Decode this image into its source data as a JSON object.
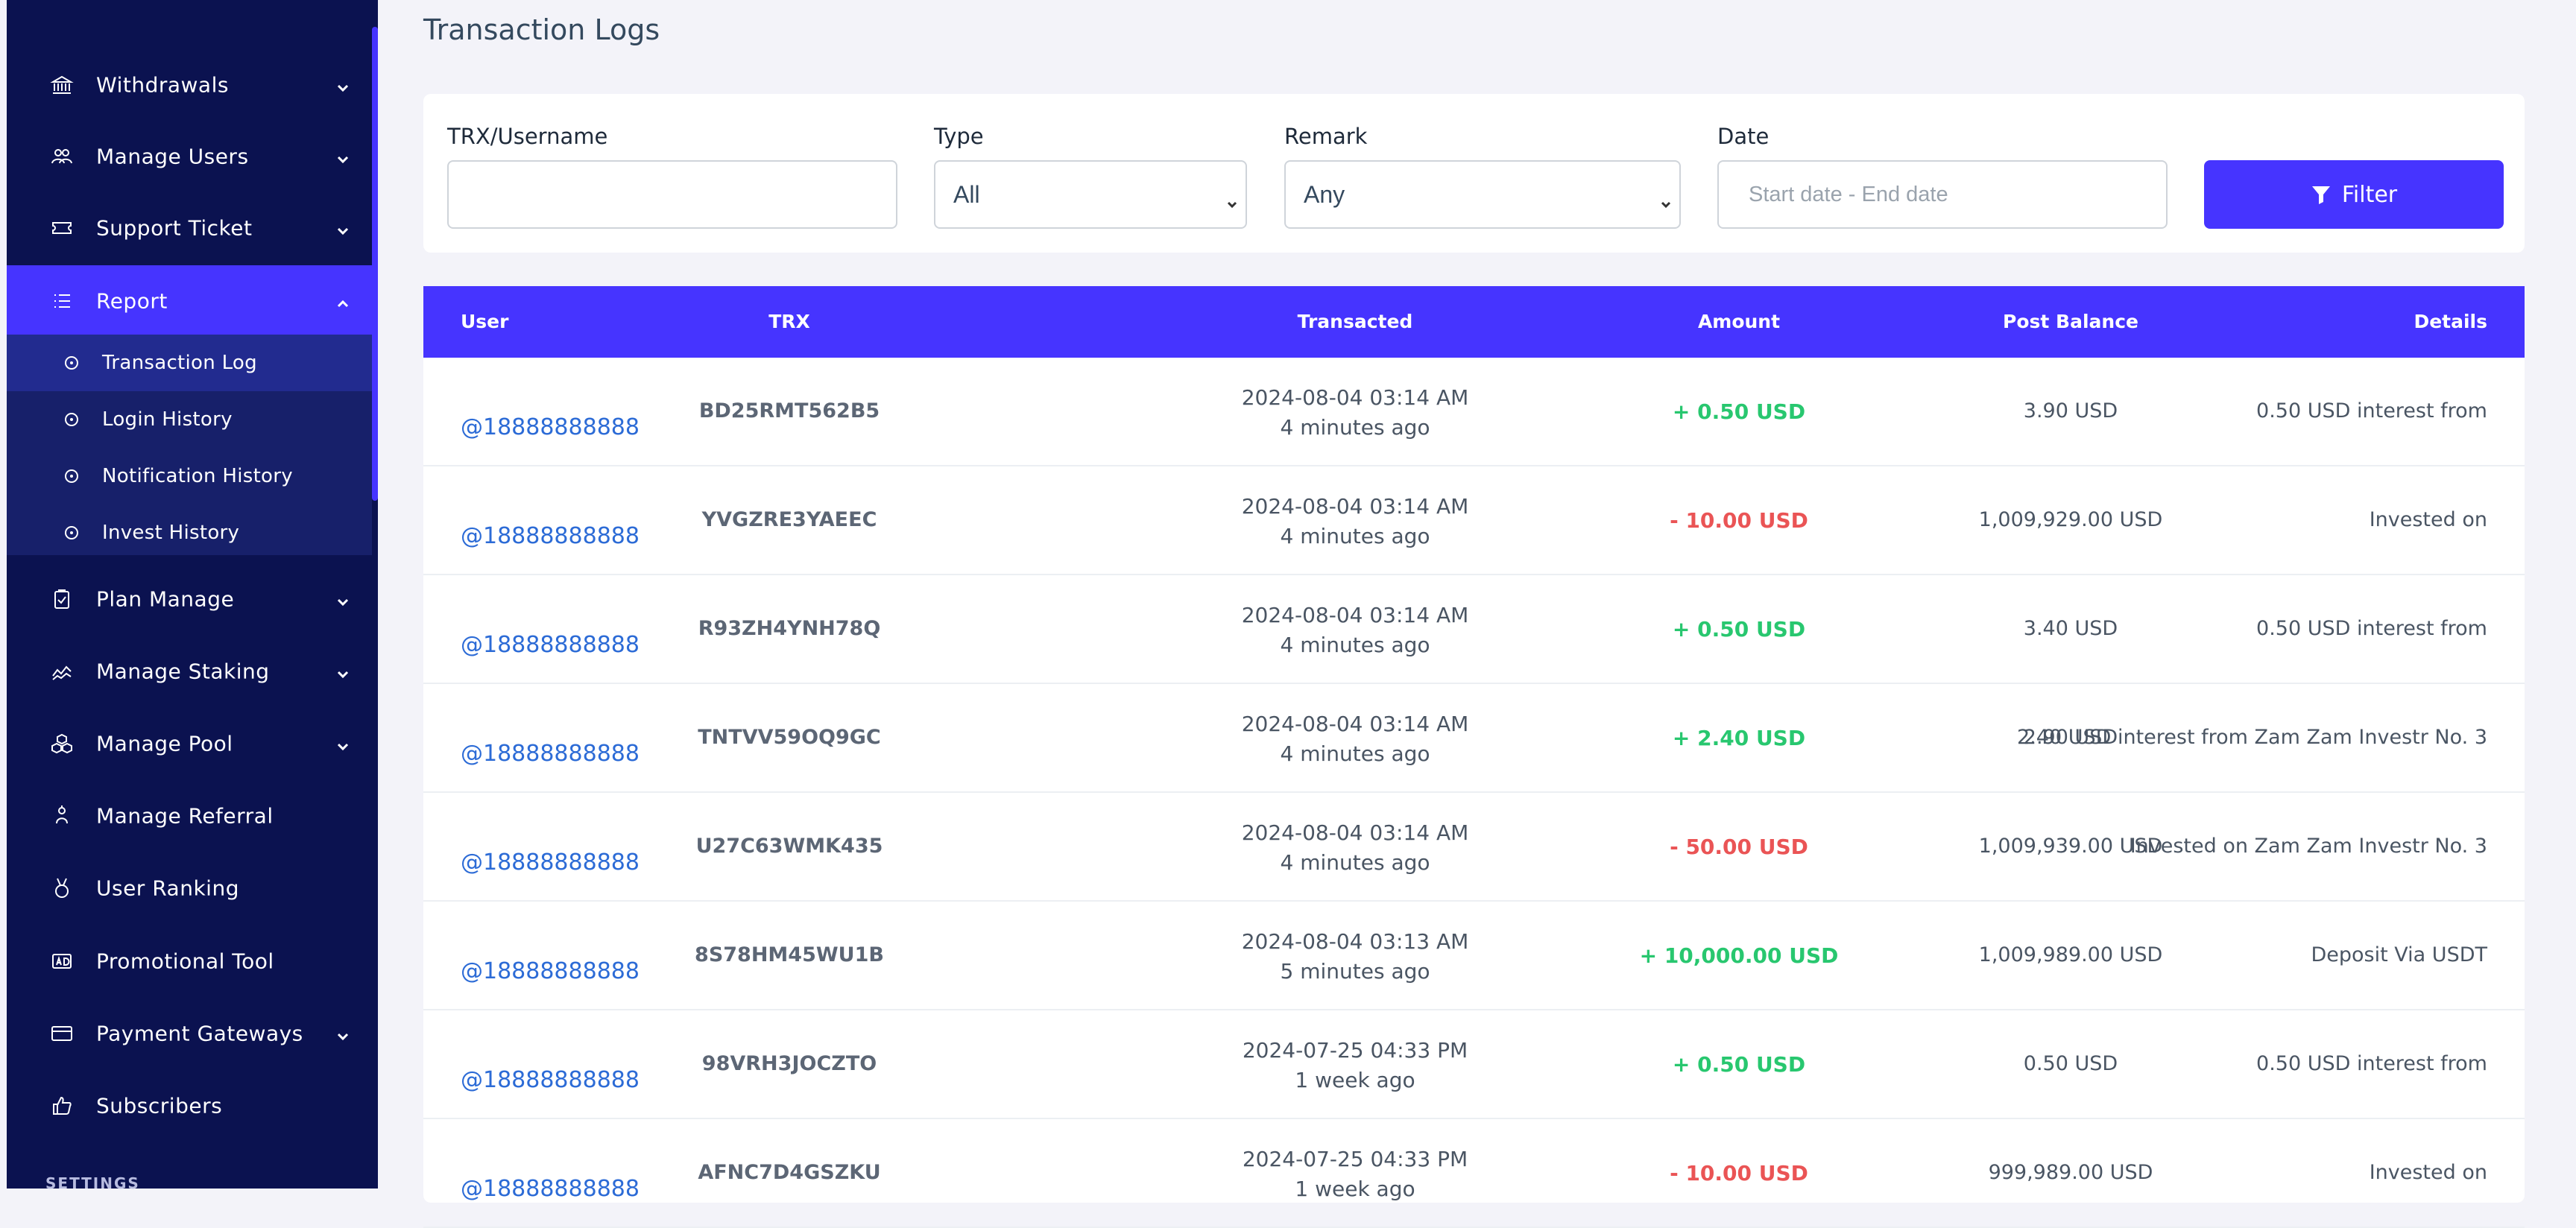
{
  "sidebar": {
    "items": [
      {
        "label": "Withdrawals",
        "icon": "bank-icon",
        "chevron": "down"
      },
      {
        "label": "Manage Users",
        "icon": "users-icon",
        "chevron": "down"
      },
      {
        "label": "Support Ticket",
        "icon": "ticket-icon",
        "chevron": "down"
      },
      {
        "label": "Report",
        "icon": "list-icon",
        "chevron": "up"
      },
      {
        "label": "Plan Manage",
        "icon": "clipboard-icon",
        "chevron": "down"
      },
      {
        "label": "Manage Staking",
        "icon": "chart-line-icon",
        "chevron": "down"
      },
      {
        "label": "Manage Pool",
        "icon": "cubes-icon",
        "chevron": "down"
      },
      {
        "label": "Manage Referral",
        "icon": "referral-icon"
      },
      {
        "label": "User Ranking",
        "icon": "medal-icon"
      },
      {
        "label": "Promotional Tool",
        "icon": "ad-icon"
      },
      {
        "label": "Payment Gateways",
        "icon": "credit-card-icon",
        "chevron": "down"
      },
      {
        "label": "Subscribers",
        "icon": "thumbs-up-icon"
      }
    ],
    "report_submenu": [
      {
        "label": "Transaction Log"
      },
      {
        "label": "Login History"
      },
      {
        "label": "Notification History"
      },
      {
        "label": "Invest History"
      }
    ],
    "settings_label": "SETTINGS"
  },
  "page": {
    "title": "Transaction Logs"
  },
  "filters": {
    "trx_label": "TRX/Username",
    "trx_value": "",
    "type_label": "Type",
    "type_value": "All",
    "remark_label": "Remark",
    "remark_value": "Any",
    "date_label": "Date",
    "date_placeholder": "Start date - End date",
    "filter_button": "Filter"
  },
  "table": {
    "headers": {
      "user": "User",
      "trx": "TRX",
      "transacted": "Transacted",
      "amount": "Amount",
      "post_balance": "Post Balance",
      "details": "Details"
    },
    "rows": [
      {
        "user": "@18888888888",
        "trx": "BD25RMT562B5",
        "date": "2024-08-04 03:14 AM",
        "ago": "4 minutes ago",
        "amount": "+ 0.50 USD",
        "sign": "pos",
        "balance": "3.90 USD",
        "details": "0.50 USD interest from"
      },
      {
        "user": "@18888888888",
        "trx": "YVGZRE3YAEEC",
        "date": "2024-08-04 03:14 AM",
        "ago": "4 minutes ago",
        "amount": "- 10.00 USD",
        "sign": "neg",
        "balance": "1,009,929.00 USD",
        "details": "Invested on"
      },
      {
        "user": "@18888888888",
        "trx": "R93ZH4YNH78Q",
        "date": "2024-08-04 03:14 AM",
        "ago": "4 minutes ago",
        "amount": "+ 0.50 USD",
        "sign": "pos",
        "balance": "3.40 USD",
        "details": "0.50 USD interest from"
      },
      {
        "user": "@18888888888",
        "trx": "TNTVV59OQ9GC",
        "date": "2024-08-04 03:14 AM",
        "ago": "4 minutes ago",
        "amount": "+ 2.40 USD",
        "sign": "pos",
        "balance": "2.90 USD",
        "details": "2.40 USD interest from Zam Zam Investr No. 3"
      },
      {
        "user": "@18888888888",
        "trx": "U27C63WMK435",
        "date": "2024-08-04 03:14 AM",
        "ago": "4 minutes ago",
        "amount": "- 50.00 USD",
        "sign": "neg",
        "balance": "1,009,939.00 USD",
        "details": "Invested on Zam Zam Investr No. 3"
      },
      {
        "user": "@18888888888",
        "trx": "8S78HM45WU1B",
        "date": "2024-08-04 03:13 AM",
        "ago": "5 minutes ago",
        "amount": "+ 10,000.00 USD",
        "sign": "pos",
        "balance": "1,009,989.00 USD",
        "details": "Deposit Via USDT"
      },
      {
        "user": "@18888888888",
        "trx": "98VRH3JOCZTO",
        "date": "2024-07-25 04:33 PM",
        "ago": "1 week ago",
        "amount": "+ 0.50 USD",
        "sign": "pos",
        "balance": "0.50 USD",
        "details": "0.50 USD interest from"
      },
      {
        "user": "@18888888888",
        "trx": "AFNC7D4GSZKU",
        "date": "2024-07-25 04:33 PM",
        "ago": "1 week ago",
        "amount": "- 10.00 USD",
        "sign": "neg",
        "balance": "999,989.00 USD",
        "details": "Invested on"
      }
    ]
  },
  "colors": {
    "sidebar_bg": "#0b1250",
    "accent": "#4634ff",
    "positive": "#28c76f",
    "negative": "#ea5455",
    "link": "#2c6bd6"
  }
}
